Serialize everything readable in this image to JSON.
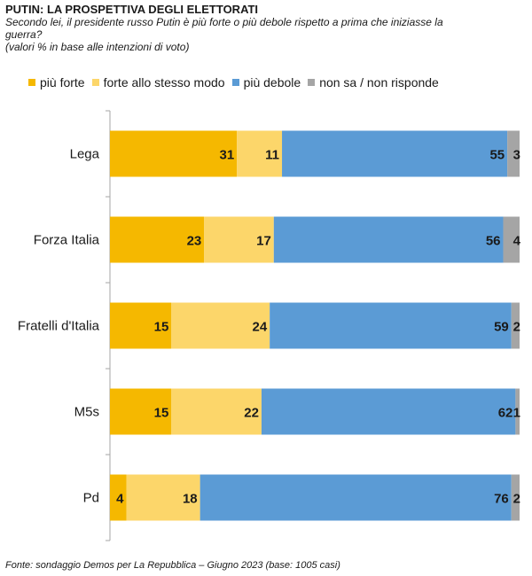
{
  "title": "PUTIN: LA PROSPETTIVA DEGLI ELETTORATI",
  "subtitle_line1": "Secondo lei, il presidente russo Putin è più forte o più debole rispetto a prima che iniziasse la",
  "subtitle_line2": "guerra?",
  "subtitle_line3": "(valori % in base alle intenzioni di voto)",
  "source": "Fonte: sondaggio Demos per La Repubblica – Giugno 2023 (base: 1005 casi)",
  "chart_data": {
    "type": "bar",
    "orientation": "horizontal",
    "stacked": true,
    "categories": [
      "Lega",
      "Forza Italia",
      "Fratelli d'Italia",
      "M5s",
      "Pd"
    ],
    "series": [
      {
        "name": "più forte",
        "color": "#f5b800",
        "values": [
          31,
          23,
          15,
          15,
          4
        ]
      },
      {
        "name": "forte allo stesso modo",
        "color": "#fcd66a",
        "values": [
          11,
          17,
          24,
          22,
          18
        ]
      },
      {
        "name": "più debole",
        "color": "#5b9bd5",
        "values": [
          55,
          56,
          59,
          62,
          76
        ]
      },
      {
        "name": "non sa / non risponde",
        "color": "#a5a5a5",
        "values": [
          3,
          4,
          2,
          1,
          2
        ]
      }
    ],
    "xlim": [
      0,
      100
    ],
    "legend_position": "top",
    "grid": false
  }
}
